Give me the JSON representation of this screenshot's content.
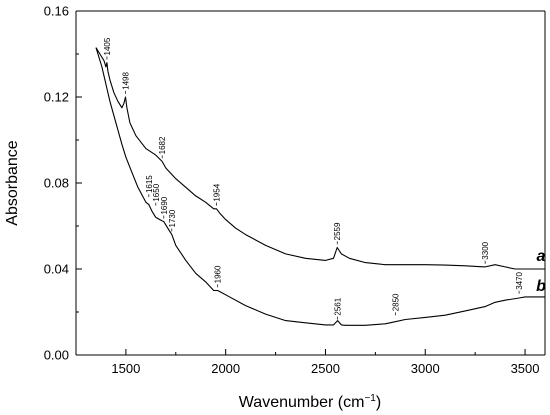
{
  "chart_data": {
    "type": "line",
    "xlabel": "Wavenumber (cm",
    "xlabel_sup": "−1",
    "xlabel_end": ")",
    "ylabel": "Absorbance",
    "xlim": [
      1250,
      3600
    ],
    "ylim": [
      0,
      0.16
    ],
    "x_ticks": [
      1500,
      2000,
      2500,
      3000,
      3500
    ],
    "x_tick_labels": [
      "1500",
      "2000",
      "2500",
      "3000",
      "3500"
    ],
    "y_ticks": [
      0,
      0.04,
      0.08,
      0.12,
      0.16
    ],
    "y_tick_labels": [
      "0.00",
      "0.04",
      "0.08",
      "0.12",
      "0.16"
    ],
    "series": [
      {
        "name": "a",
        "x": [
          1350,
          1370,
          1390,
          1400,
          1405,
          1410,
          1420,
          1440,
          1460,
          1480,
          1490,
          1498,
          1505,
          1520,
          1550,
          1600,
          1650,
          1682,
          1700,
          1750,
          1800,
          1850,
          1900,
          1940,
          1954,
          1970,
          2000,
          2050,
          2100,
          2200,
          2300,
          2400,
          2500,
          2540,
          2559,
          2580,
          2620,
          2700,
          2800,
          2900,
          3000,
          3100,
          3200,
          3300,
          3350,
          3400,
          3450,
          3500,
          3600
        ],
        "y": [
          0.143,
          0.14,
          0.137,
          0.134,
          0.136,
          0.132,
          0.128,
          0.122,
          0.118,
          0.115,
          0.117,
          0.12,
          0.115,
          0.108,
          0.102,
          0.096,
          0.093,
          0.09,
          0.087,
          0.082,
          0.078,
          0.074,
          0.071,
          0.068,
          0.068,
          0.066,
          0.063,
          0.059,
          0.056,
          0.051,
          0.047,
          0.045,
          0.044,
          0.045,
          0.05,
          0.047,
          0.045,
          0.043,
          0.042,
          0.042,
          0.042,
          0.0418,
          0.0415,
          0.041,
          0.042,
          0.041,
          0.04,
          0.04,
          0.04
        ]
      },
      {
        "name": "b",
        "x": [
          1350,
          1380,
          1400,
          1420,
          1450,
          1480,
          1500,
          1530,
          1560,
          1600,
          1615,
          1630,
          1650,
          1670,
          1690,
          1710,
          1730,
          1750,
          1800,
          1850,
          1900,
          1940,
          1960,
          1980,
          2000,
          2100,
          2200,
          2300,
          2400,
          2500,
          2540,
          2561,
          2580,
          2600,
          2700,
          2800,
          2850,
          2900,
          3000,
          3100,
          3200,
          3300,
          3350,
          3400,
          3470,
          3500,
          3600
        ],
        "y": [
          0.143,
          0.134,
          0.126,
          0.118,
          0.108,
          0.098,
          0.092,
          0.085,
          0.078,
          0.071,
          0.07,
          0.067,
          0.064,
          0.063,
          0.062,
          0.059,
          0.056,
          0.051,
          0.044,
          0.038,
          0.034,
          0.03,
          0.03,
          0.029,
          0.028,
          0.023,
          0.019,
          0.016,
          0.015,
          0.014,
          0.014,
          0.016,
          0.014,
          0.0138,
          0.0138,
          0.0145,
          0.0155,
          0.0165,
          0.0175,
          0.0185,
          0.0205,
          0.0225,
          0.0245,
          0.0255,
          0.0265,
          0.027,
          0.027
        ]
      }
    ],
    "series_labels": [
      {
        "text": "a",
        "x": 3580,
        "y": 0.046
      },
      {
        "text": "b",
        "x": 3580,
        "y": 0.032
      }
    ],
    "annotations": [
      {
        "text": "1405",
        "x": 1405,
        "y": 0.137
      },
      {
        "text": "1498",
        "x": 1498,
        "y": 0.121
      },
      {
        "text": "1682",
        "x": 1682,
        "y": 0.091
      },
      {
        "text": "1954",
        "x": 1954,
        "y": 0.069
      },
      {
        "text": "2559",
        "x": 2559,
        "y": 0.051
      },
      {
        "text": "3300",
        "x": 3300,
        "y": 0.042
      },
      {
        "text": "1615",
        "x": 1615,
        "y": 0.073
      },
      {
        "text": "1650",
        "x": 1650,
        "y": 0.069
      },
      {
        "text": "1690",
        "x": 1690,
        "y": 0.063
      },
      {
        "text": "1730",
        "x": 1730,
        "y": 0.057
      },
      {
        "text": "1960",
        "x": 1960,
        "y": 0.031
      },
      {
        "text": "2561",
        "x": 2561,
        "y": 0.016
      },
      {
        "text": "2850",
        "x": 2850,
        "y": 0.018
      },
      {
        "text": "3470",
        "x": 3470,
        "y": 0.028
      }
    ],
    "grid": false,
    "line_color": "#000000"
  }
}
